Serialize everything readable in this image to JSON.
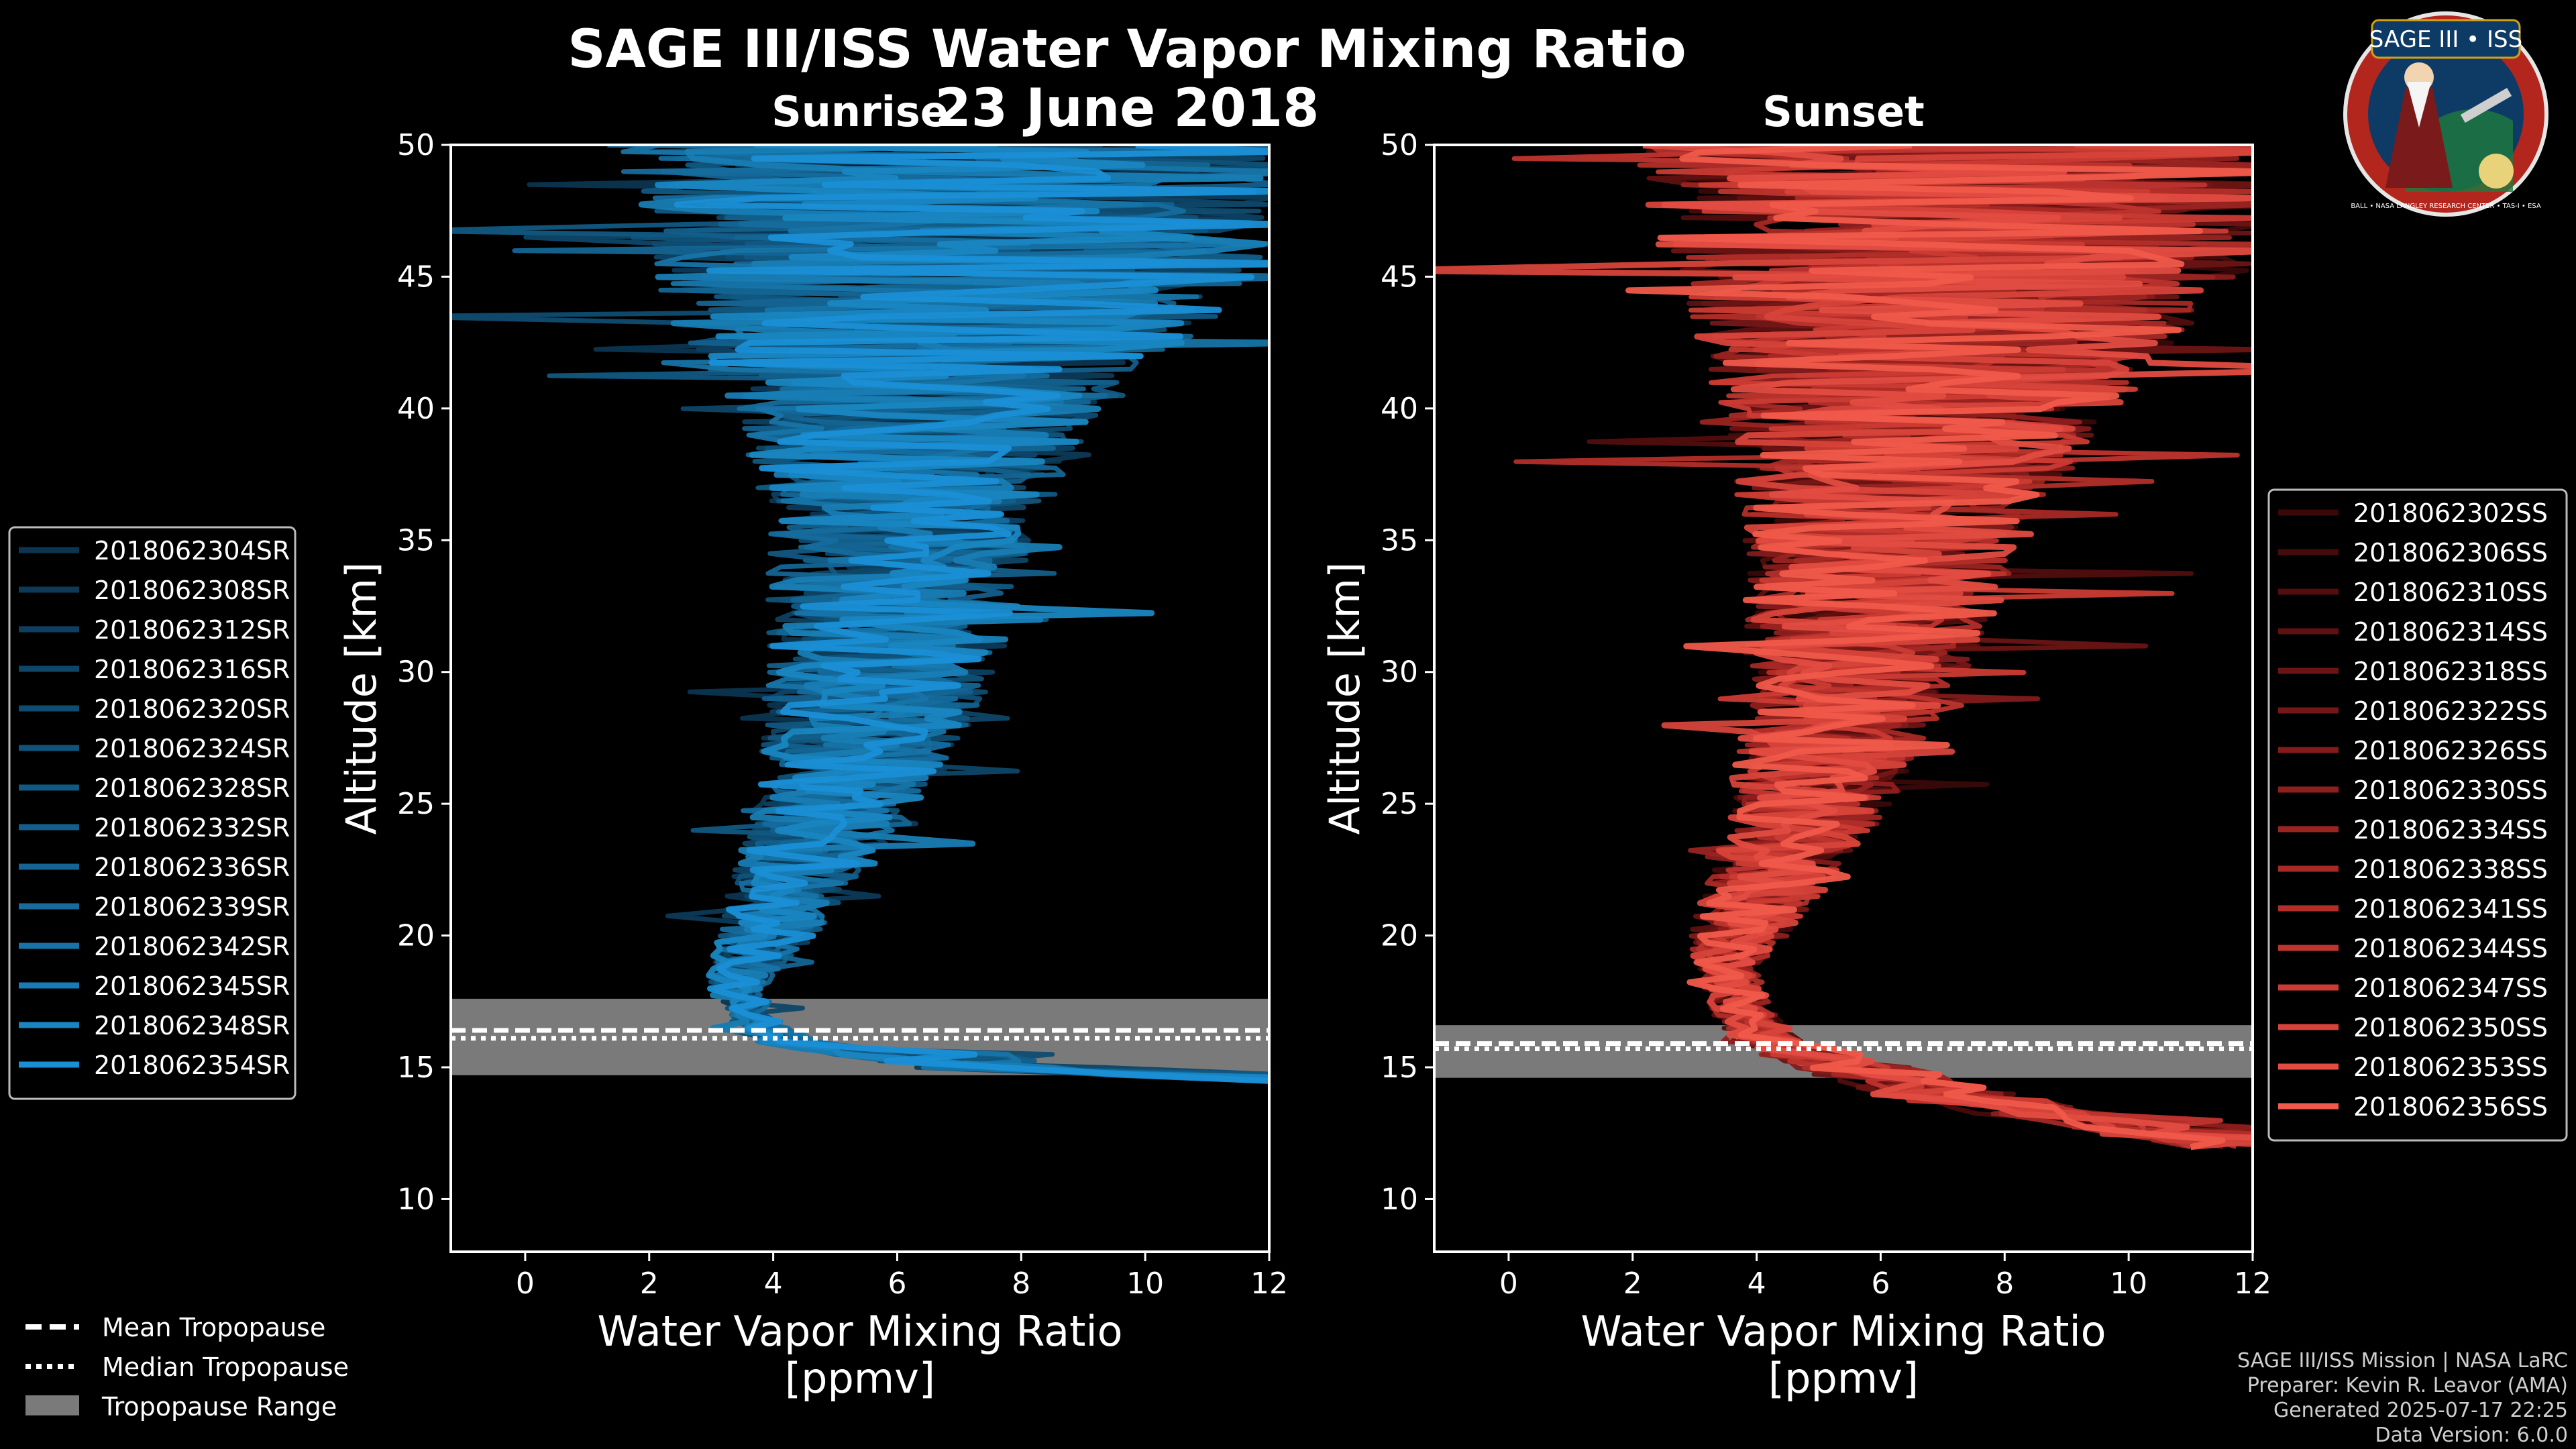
{
  "title": "SAGE III/ISS Water Vapor Mixing Ratio",
  "date": "23 June 2018",
  "logo": {
    "text": "SAGE III • ISS",
    "ring_text": "BALL • NASA LANGLEY RESEARCH CENTER • TAS-I • ESA",
    "colors": {
      "ring": "#c0392b",
      "field": "#0d3b66",
      "gold": "#d4a017"
    }
  },
  "credits": [
    "SAGE III/ISS Mission | NASA LaRC",
    "Preparer: Kevin R. Leavor (AMA)",
    "Generated 2025-07-17 22:25",
    "Data Version: 6.0.0"
  ],
  "tropopause_legend": [
    {
      "label": "Mean Tropopause",
      "style": "dashed"
    },
    {
      "label": "Median Tropopause",
      "style": "dotted"
    },
    {
      "label": "Tropopause Range",
      "style": "patch"
    }
  ],
  "chart_data": [
    {
      "type": "line",
      "id": "sunrise",
      "title": "Sunrise",
      "xlabel": "Water Vapor Mixing Ratio\n[ppmv]",
      "ylabel": "Altitude [km]",
      "xlim": [
        -1.2,
        12
      ],
      "ylim": [
        8,
        50
      ],
      "xticks": [
        0,
        2,
        4,
        6,
        8,
        10,
        12
      ],
      "yticks": [
        10,
        15,
        20,
        25,
        30,
        35,
        40,
        45,
        50
      ],
      "color": "#1a8fd6",
      "tropopause": {
        "mean": 16.4,
        "median": 16.1,
        "range": [
          14.7,
          17.6
        ]
      },
      "series": [
        "2018062304SR",
        "2018062308SR",
        "2018062312SR",
        "2018062316SR",
        "2018062320SR",
        "2018062324SR",
        "2018062328SR",
        "2018062332SR",
        "2018062336SR",
        "2018062339SR",
        "2018062342SR",
        "2018062345SR",
        "2018062348SR",
        "2018062354SR"
      ],
      "series_colors": [
        "#0b3550",
        "#0c3a58",
        "#0d4060",
        "#0e4668",
        "#0f4c71",
        "#105279",
        "#115882",
        "#135f8b",
        "#146594",
        "#156c9d",
        "#1774a8",
        "#187db4",
        "#1986c1",
        "#1a8fd6"
      ],
      "profile": {
        "altitude": [
          14.5,
          15,
          16,
          17,
          18,
          19,
          20,
          22,
          24,
          26,
          28,
          30,
          32,
          34,
          36,
          38,
          40,
          42,
          44,
          46,
          48,
          50
        ],
        "mean": [
          12,
          7,
          4.2,
          3.6,
          3.4,
          3.6,
          3.9,
          4.3,
          4.8,
          5.2,
          5.5,
          5.7,
          5.9,
          6.0,
          6.1,
          6.2,
          6.4,
          6.6,
          6.8,
          7.0,
          7.1,
          7.2
        ],
        "spread": [
          0,
          0.8,
          0.5,
          0.4,
          0.5,
          0.6,
          0.8,
          1.0,
          1.3,
          1.5,
          1.7,
          1.9,
          2.0,
          2.1,
          2.3,
          2.6,
          3.0,
          3.8,
          4.6,
          5.2,
          5.6,
          6.0
        ]
      }
    },
    {
      "type": "line",
      "id": "sunset",
      "title": "Sunset",
      "xlabel": "Water Vapor Mixing Ratio\n[ppmv]",
      "ylabel": "Altitude [km]",
      "xlim": [
        -1.2,
        12
      ],
      "ylim": [
        8,
        50
      ],
      "xticks": [
        0,
        2,
        4,
        6,
        8,
        10,
        12
      ],
      "yticks": [
        10,
        15,
        20,
        25,
        30,
        35,
        40,
        45,
        50
      ],
      "color": "#f05a4a",
      "tropopause": {
        "mean": 15.9,
        "median": 15.7,
        "range": [
          14.6,
          16.6
        ]
      },
      "series": [
        "2018062302SS",
        "2018062306SS",
        "2018062310SS",
        "2018062314SS",
        "2018062318SS",
        "2018062322SS",
        "2018062326SS",
        "2018062330SS",
        "2018062334SS",
        "2018062338SS",
        "2018062341SS",
        "2018062344SS",
        "2018062347SS",
        "2018062350SS",
        "2018062353SS",
        "2018062356SS"
      ],
      "series_colors": [
        "#3a0808",
        "#460b0b",
        "#520e0e",
        "#5e1111",
        "#6a1414",
        "#761717",
        "#821b1a",
        "#8e1f1d",
        "#9a2421",
        "#a62925",
        "#b22e29",
        "#be342e",
        "#ca3b33",
        "#d6433a",
        "#e24c41",
        "#f05a4a"
      ],
      "profile": {
        "altitude": [
          12,
          13,
          14,
          15,
          16,
          17,
          18,
          19,
          20,
          22,
          24,
          26,
          28,
          30,
          32,
          34,
          36,
          38,
          40,
          42,
          44,
          46,
          48,
          50
        ],
        "mean": [
          11,
          9,
          7,
          5.5,
          4.2,
          3.8,
          3.6,
          3.5,
          3.7,
          4.2,
          4.7,
          5.0,
          5.3,
          5.6,
          5.8,
          6.0,
          6.2,
          6.4,
          6.6,
          6.9,
          7.2,
          7.4,
          7.5,
          7.6
        ],
        "spread": [
          0,
          1.0,
          1.2,
          1.0,
          0.6,
          0.5,
          0.5,
          0.6,
          0.8,
          1.0,
          1.2,
          1.4,
          1.6,
          1.8,
          2.0,
          2.2,
          2.5,
          2.8,
          3.2,
          3.8,
          4.4,
          5.0,
          5.4,
          5.8
        ]
      }
    }
  ]
}
